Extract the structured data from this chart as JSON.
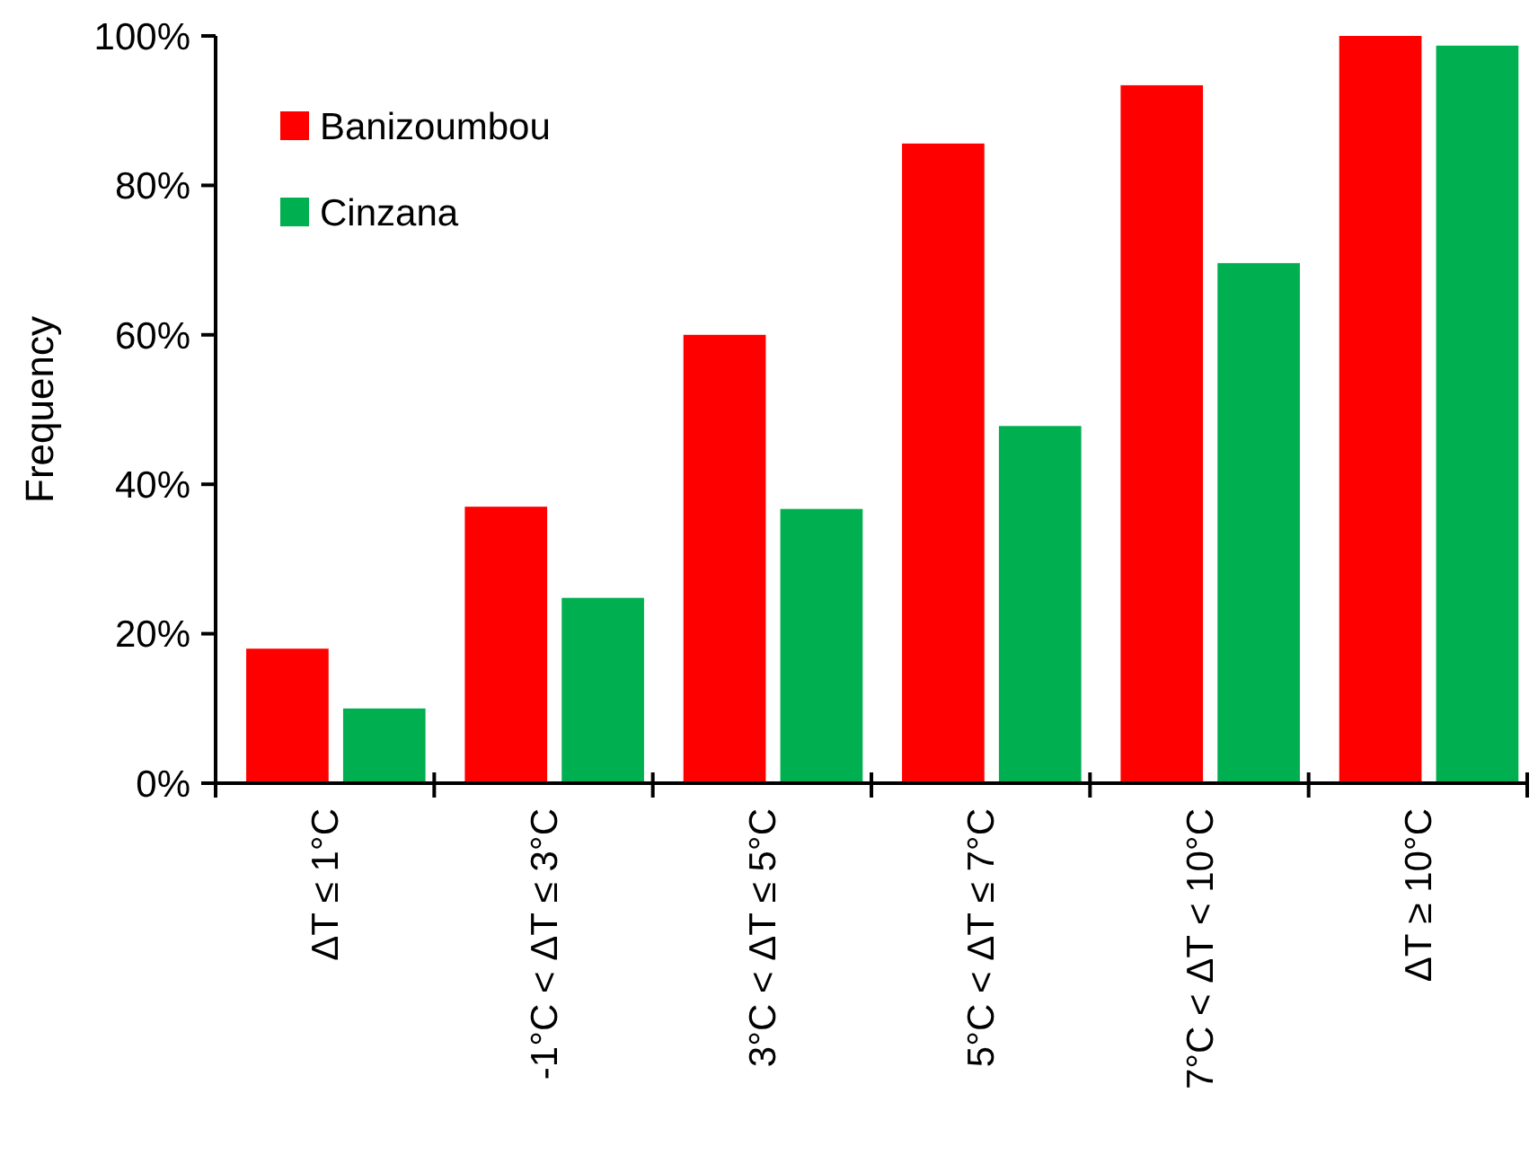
{
  "chart_data": {
    "type": "bar",
    "ylabel": "Frequency",
    "categories": [
      "ΔT ≤ 1°C",
      "-1°C < ΔT ≤ 3°C",
      "3°C < ΔT ≤ 5°C",
      "5°C < ΔT ≤ 7°C",
      "7°C < ΔT < 10°C",
      "ΔT ≥ 10°C"
    ],
    "series": [
      {
        "name": "Banizoumbou",
        "color": "#ff0000",
        "values": [
          18,
          37,
          60,
          85.6,
          93.4,
          100
        ]
      },
      {
        "name": "Cinzana",
        "color": "#00b050",
        "values": [
          10,
          24.8,
          36.7,
          47.8,
          69.6,
          98.7
        ]
      }
    ],
    "ylim": [
      0,
      100
    ],
    "yticks": [
      {
        "value": 0,
        "label": "0%"
      },
      {
        "value": 20,
        "label": "20%"
      },
      {
        "value": 40,
        "label": "40%"
      },
      {
        "value": 60,
        "label": "60%"
      },
      {
        "value": 80,
        "label": "80%"
      },
      {
        "value": 100,
        "label": "100%"
      }
    ],
    "legend": "top left"
  }
}
